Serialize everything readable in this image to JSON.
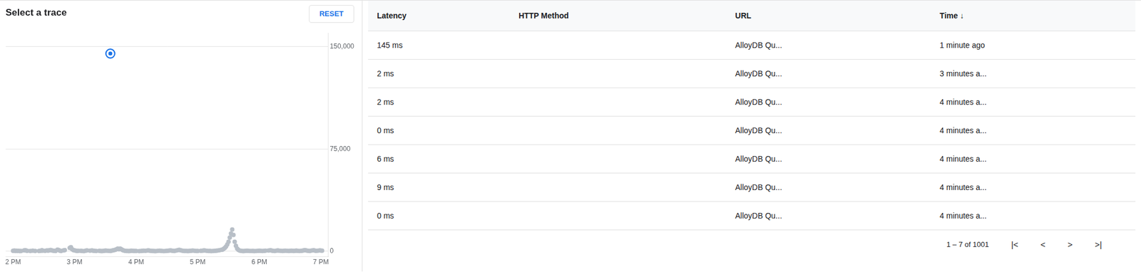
{
  "chart_data": {
    "type": "scatter",
    "title": "Select a trace",
    "xlim": [
      -0.12,
      5.12
    ],
    "xticks": [
      {
        "value": 0,
        "label": "2 PM"
      },
      {
        "value": 1,
        "label": "3 PM"
      },
      {
        "value": 2,
        "label": "4 PM"
      },
      {
        "value": 3,
        "label": "5 PM"
      },
      {
        "value": 4,
        "label": "6 PM"
      },
      {
        "value": 5,
        "label": "7 PM"
      }
    ],
    "ylim": [
      -4000,
      160000
    ],
    "yticks": [
      0,
      {
        "value": 75000,
        "label": "75,000"
      },
      {
        "value": 150000,
        "label": "150,000"
      }
    ],
    "grid": true,
    "series": [
      {
        "color": "#b8bfc7",
        "marker": "circle",
        "x": [
          0.0,
          0.02,
          0.04,
          0.05,
          0.07,
          0.09,
          0.11,
          0.13,
          0.18,
          0.2,
          0.21,
          0.23,
          0.28,
          0.32,
          0.36,
          0.42,
          0.44,
          0.46,
          0.47,
          0.48,
          0.52,
          0.55,
          0.57,
          0.59,
          0.61,
          0.63,
          0.65,
          0.67,
          0.69,
          0.72,
          0.74,
          0.76,
          0.78,
          0.82,
          0.84,
          0.92,
          0.94,
          0.96,
          0.98,
          1.0,
          1.02,
          1.04,
          1.06,
          1.1,
          1.12,
          1.15,
          1.18,
          1.2,
          1.25,
          1.28,
          1.3,
          1.32,
          1.35,
          1.4,
          1.42,
          1.44,
          1.46,
          1.48,
          1.5,
          1.52,
          1.55,
          1.58,
          1.6,
          1.62,
          1.64,
          1.66,
          1.68,
          1.7,
          1.72,
          1.74,
          1.76,
          1.78,
          1.8,
          1.82,
          1.84,
          1.86,
          1.88,
          1.9,
          1.92,
          1.94,
          1.96,
          1.98,
          2.0,
          2.05,
          2.08,
          2.1,
          2.12,
          2.15,
          2.18,
          2.2,
          2.22,
          2.24,
          2.26,
          2.28,
          2.3,
          2.32,
          2.35,
          2.38,
          2.4,
          2.42,
          2.45,
          2.48,
          2.5,
          2.52,
          2.54,
          2.56,
          2.58,
          2.6,
          2.62,
          2.65,
          2.68,
          2.7,
          2.72,
          2.74,
          2.76,
          2.78,
          2.8,
          2.82,
          2.84,
          2.86,
          2.88,
          2.9,
          2.92,
          2.95,
          2.98,
          3.0,
          3.05,
          3.08,
          3.1,
          3.12,
          3.15,
          3.18,
          3.2,
          3.22,
          3.25,
          3.28,
          3.3,
          3.32,
          3.35,
          3.38,
          3.4,
          3.42,
          3.44,
          3.46,
          3.48,
          3.5,
          3.52,
          3.54,
          3.56,
          3.58,
          3.6,
          3.62,
          3.64,
          3.66,
          3.68,
          3.7,
          3.72,
          3.74,
          3.76,
          3.78,
          3.8,
          3.82,
          3.85,
          3.88,
          3.9,
          3.92,
          3.95,
          3.98,
          4.0,
          4.02,
          4.05,
          4.08,
          4.1,
          4.15,
          4.18,
          4.2,
          4.22,
          4.25,
          4.28,
          4.3,
          4.32,
          4.35,
          4.38,
          4.4,
          4.42,
          4.45,
          4.48,
          4.5,
          4.52,
          4.54,
          4.56,
          4.58,
          4.6,
          4.62,
          4.65,
          4.68,
          4.7,
          4.72,
          4.74,
          4.76,
          4.78,
          4.8,
          4.82,
          4.85,
          4.88,
          4.9,
          4.92,
          4.95,
          4.98,
          5.0,
          5.02
        ],
        "values": [
          300,
          500,
          200,
          400,
          200,
          300,
          100,
          200,
          600,
          700,
          500,
          300,
          200,
          400,
          200,
          200,
          350,
          500,
          700,
          400,
          300,
          600,
          400,
          700,
          900,
          600,
          400,
          300,
          200,
          1200,
          900,
          400,
          200,
          600,
          800,
          2500,
          3000,
          1500,
          800,
          600,
          400,
          200,
          300,
          300,
          200,
          150,
          400,
          600,
          400,
          600,
          400,
          300,
          200,
          300,
          200,
          150,
          200,
          300,
          500,
          400,
          300,
          200,
          400,
          600,
          800,
          1000,
          1500,
          2000,
          1500,
          2000,
          1500,
          800,
          500,
          300,
          200,
          200,
          150,
          200,
          400,
          300,
          200,
          200,
          200,
          100,
          200,
          300,
          400,
          300,
          500,
          600,
          400,
          300,
          200,
          200,
          150,
          100,
          300,
          400,
          300,
          200,
          150,
          200,
          300,
          400,
          500,
          600,
          400,
          300,
          200,
          500,
          800,
          1000,
          700,
          500,
          300,
          200,
          200,
          200,
          150,
          200,
          300,
          400,
          500,
          300,
          200,
          200,
          300,
          400,
          600,
          500,
          300,
          200,
          200,
          150,
          200,
          300,
          400,
          500,
          700,
          1000,
          1200,
          1800,
          2500,
          3500,
          5000,
          7000,
          10000,
          13000,
          16000,
          12000,
          7000,
          4000,
          2000,
          1000,
          500,
          300,
          200,
          150,
          200,
          300,
          400,
          300,
          200,
          200,
          200,
          150,
          200,
          300,
          400,
          300,
          200,
          300,
          400,
          500,
          700,
          500,
          300,
          200,
          400,
          600,
          400,
          300,
          200,
          300,
          400,
          300,
          200,
          300,
          400,
          300,
          200,
          300,
          500,
          300,
          200,
          300,
          400,
          600,
          800,
          600,
          400,
          300,
          200,
          500,
          700,
          500,
          300,
          400,
          600,
          500,
          400
        ]
      },
      {
        "color": "#1a73e8",
        "marker": "ring",
        "x": [
          1.58
        ],
        "values": [
          145000
        ]
      }
    ],
    "annotations": [
      {
        "text": "RESET",
        "color": "#1a73e8"
      }
    ],
    "table": {
      "headers": [
        "Latency",
        "HTTP Method",
        "URL",
        "Time ↓"
      ],
      "rows": [
        [
          "145 ms",
          null,
          "AlloyDB Qu...",
          "1 minute ago"
        ],
        [
          "2 ms",
          null,
          "AlloyDB Qu...",
          "3 minutes a..."
        ],
        [
          "2 ms",
          null,
          "AlloyDB Qu...",
          "4 minutes a..."
        ],
        [
          "0 ms",
          null,
          "AlloyDB Qu...",
          "4 minutes a..."
        ],
        [
          "6 ms",
          null,
          "AlloyDB Qu...",
          "4 minutes a..."
        ],
        [
          "9 ms",
          null,
          "AlloyDB Qu...",
          "4 minutes a..."
        ],
        [
          "0 ms",
          null,
          "AlloyDB Qu...",
          "4 minutes a..."
        ]
      ],
      "footer": "1 – 7 of 1001",
      "navigation": [
        "|<",
        "<",
        ">",
        ">|"
      ]
    }
  }
}
